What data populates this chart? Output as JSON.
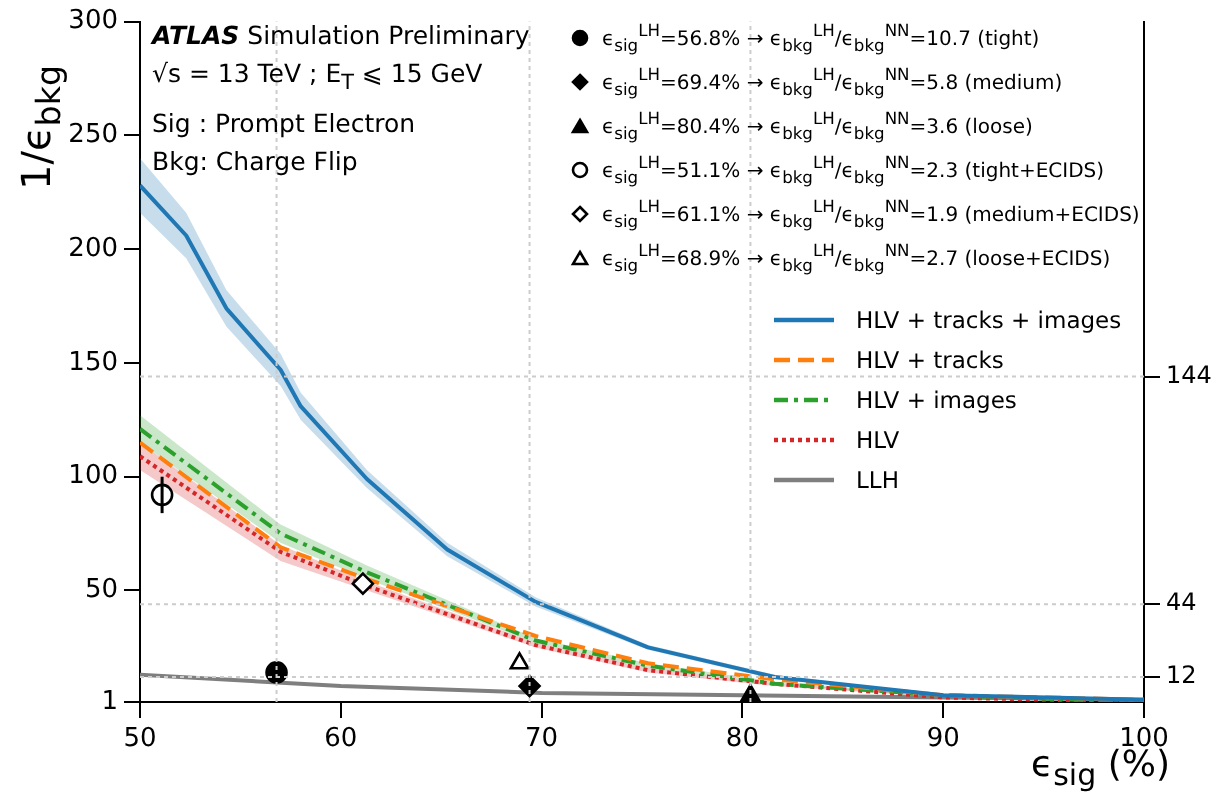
{
  "chart_data": {
    "type": "line",
    "title": "ATLAS Simulation Preliminary",
    "annotations": [
      "√s = 13 TeV ; E$_{T}$ ⩽ 15 GeV",
      "Sig : Prompt Electron",
      "Bkg: Charge Flip"
    ],
    "xlabel": "ϵ$_{sig}$ (%)",
    "ylabel": "1/ϵ$_{bkg}$",
    "xlim": [
      50,
      100
    ],
    "xticks": [
      50,
      60,
      70,
      80,
      90,
      100
    ],
    "ylim": [
      1,
      300
    ],
    "yticks": [
      1,
      50,
      100,
      150,
      200,
      250,
      300
    ],
    "y2lim": [
      1,
      300
    ],
    "y2ticks": [
      12,
      44,
      144
    ],
    "grid": false,
    "legend": "right",
    "ref_lines": [
      {
        "axis": "y",
        "value": 144,
        "color": "#cccccc",
        "line_style": "dotted"
      },
      {
        "axis": "y",
        "value": 44,
        "color": "#cccccc",
        "line_style": "dotted"
      },
      {
        "axis": "y",
        "value": 12,
        "color": "#cccccc",
        "line_style": "dotted"
      },
      {
        "axis": "x",
        "value": 56.8,
        "color": "#cccccc",
        "line_style": "dotted"
      },
      {
        "axis": "x",
        "value": 69.4,
        "color": "#cccccc",
        "line_style": "dotted"
      },
      {
        "axis": "x",
        "value": 80.4,
        "color": "#cccccc",
        "line_style": "dotted"
      }
    ],
    "series": [
      {
        "type": "scatter",
        "name": "ϵ$_{sig}$$^{LH}$=56.8% → ϵ$_{bkg}$$^{LH}$/ϵ$_{bkg}$$^{NN}$=10.7 (tight)",
        "color": "#000000",
        "marker": "circle",
        "x": [
          56.8
        ],
        "values": [
          14
        ]
      },
      {
        "type": "scatter",
        "name": "ϵ$_{sig}$$^{LH}$=69.4% → ϵ$_{bkg}$$^{LH}$/ϵ$_{bkg}$$^{NN}$=5.8 (medium)",
        "color": "#000000",
        "marker": "diamond",
        "x": [
          69.4
        ],
        "values": [
          8
        ]
      },
      {
        "type": "scatter",
        "name": "ϵ$_{sig}$$^{LH}$=80.4% → ϵ$_{bkg}$$^{LH}$/ϵ$_{bkg}$$^{NN}$=3.6 (loose)",
        "color": "#000000",
        "marker": "triangle",
        "x": [
          80.4
        ],
        "values": [
          4
        ]
      },
      {
        "type": "scatter",
        "name": "ϵ$_{sig}$$^{LH}$=51.1% → ϵ$_{bkg}$$^{LH}$/ϵ$_{bkg}$$^{NN}$=2.3 (tight+ECIDS)",
        "color": "#ffffff",
        "marker": "circle",
        "x": [
          51.1
        ],
        "values": [
          92
        ],
        "errors": [
          8
        ]
      },
      {
        "type": "scatter",
        "name": "ϵ$_{sig}$$^{LH}$=61.1% → ϵ$_{bkg}$$^{LH}$/ϵ$_{bkg}$$^{NN}$=1.9 (medium+ECIDS)",
        "color": "#ffffff",
        "marker": "diamond",
        "x": [
          61.1
        ],
        "values": [
          53
        ]
      },
      {
        "type": "scatter",
        "name": "ϵ$_{sig}$$^{LH}$=68.9% → ϵ$_{bkg}$$^{LH}$/ϵ$_{bkg}$$^{NN}$=2.7 (loose+ECIDS)",
        "color": "#ffffff",
        "marker": "triangle",
        "x": [
          68.9
        ],
        "values": [
          18
        ]
      },
      {
        "name": "HLV + tracks + images",
        "color": "#1f77b4",
        "line_style": "solid",
        "x": [
          50,
          52.3,
          54.3,
          57,
          58,
          61.3,
          65.3,
          69.7,
          75.3,
          81.6,
          90,
          100
        ],
        "values": [
          228,
          206,
          174,
          147,
          131,
          99,
          68,
          45,
          25,
          12,
          4,
          2
        ],
        "lower": [
          216,
          196,
          166,
          140,
          125,
          95,
          65,
          43,
          24,
          11,
          4,
          2
        ],
        "upper": [
          240,
          216,
          182,
          154,
          137,
          103,
          71,
          47,
          26,
          13,
          4,
          2
        ]
      },
      {
        "name": "HLV + tracks",
        "color": "#ff7f0e",
        "line_style": "dashed",
        "x": [
          50,
          57,
          61.3,
          69.7,
          75.3,
          81.6,
          90,
          100
        ],
        "values": [
          115,
          69,
          55,
          30,
          18,
          11,
          4,
          2
        ]
      },
      {
        "name": "HLV + images",
        "color": "#2ca02c",
        "line_style": "dashdot",
        "x": [
          50,
          57,
          61.3,
          69.7,
          75.3,
          81.6,
          90,
          100
        ],
        "values": [
          121,
          75,
          58,
          28,
          17,
          9,
          4,
          1
        ],
        "lower": [
          115,
          71,
          55,
          27,
          16,
          9,
          3,
          1
        ],
        "upper": [
          127,
          79,
          61,
          29,
          18,
          10,
          4,
          2
        ]
      },
      {
        "name": "HLV",
        "color": "#d62728",
        "line_style": "dotted",
        "x": [
          50,
          57,
          61.3,
          69.7,
          75.3,
          81.6,
          90,
          100
        ],
        "values": [
          109,
          67,
          52,
          26,
          15,
          9,
          3,
          1
        ],
        "lower": [
          103,
          63,
          50,
          25,
          14,
          8,
          3,
          1
        ],
        "upper": [
          115,
          70,
          54,
          27,
          16,
          9,
          4,
          2
        ]
      },
      {
        "name": "LLH",
        "color": "#7f7f7f",
        "line_style": "solid",
        "x": [
          50,
          60,
          70,
          80,
          90,
          100
        ],
        "values": [
          13,
          8,
          5,
          4,
          3,
          2
        ]
      }
    ]
  }
}
